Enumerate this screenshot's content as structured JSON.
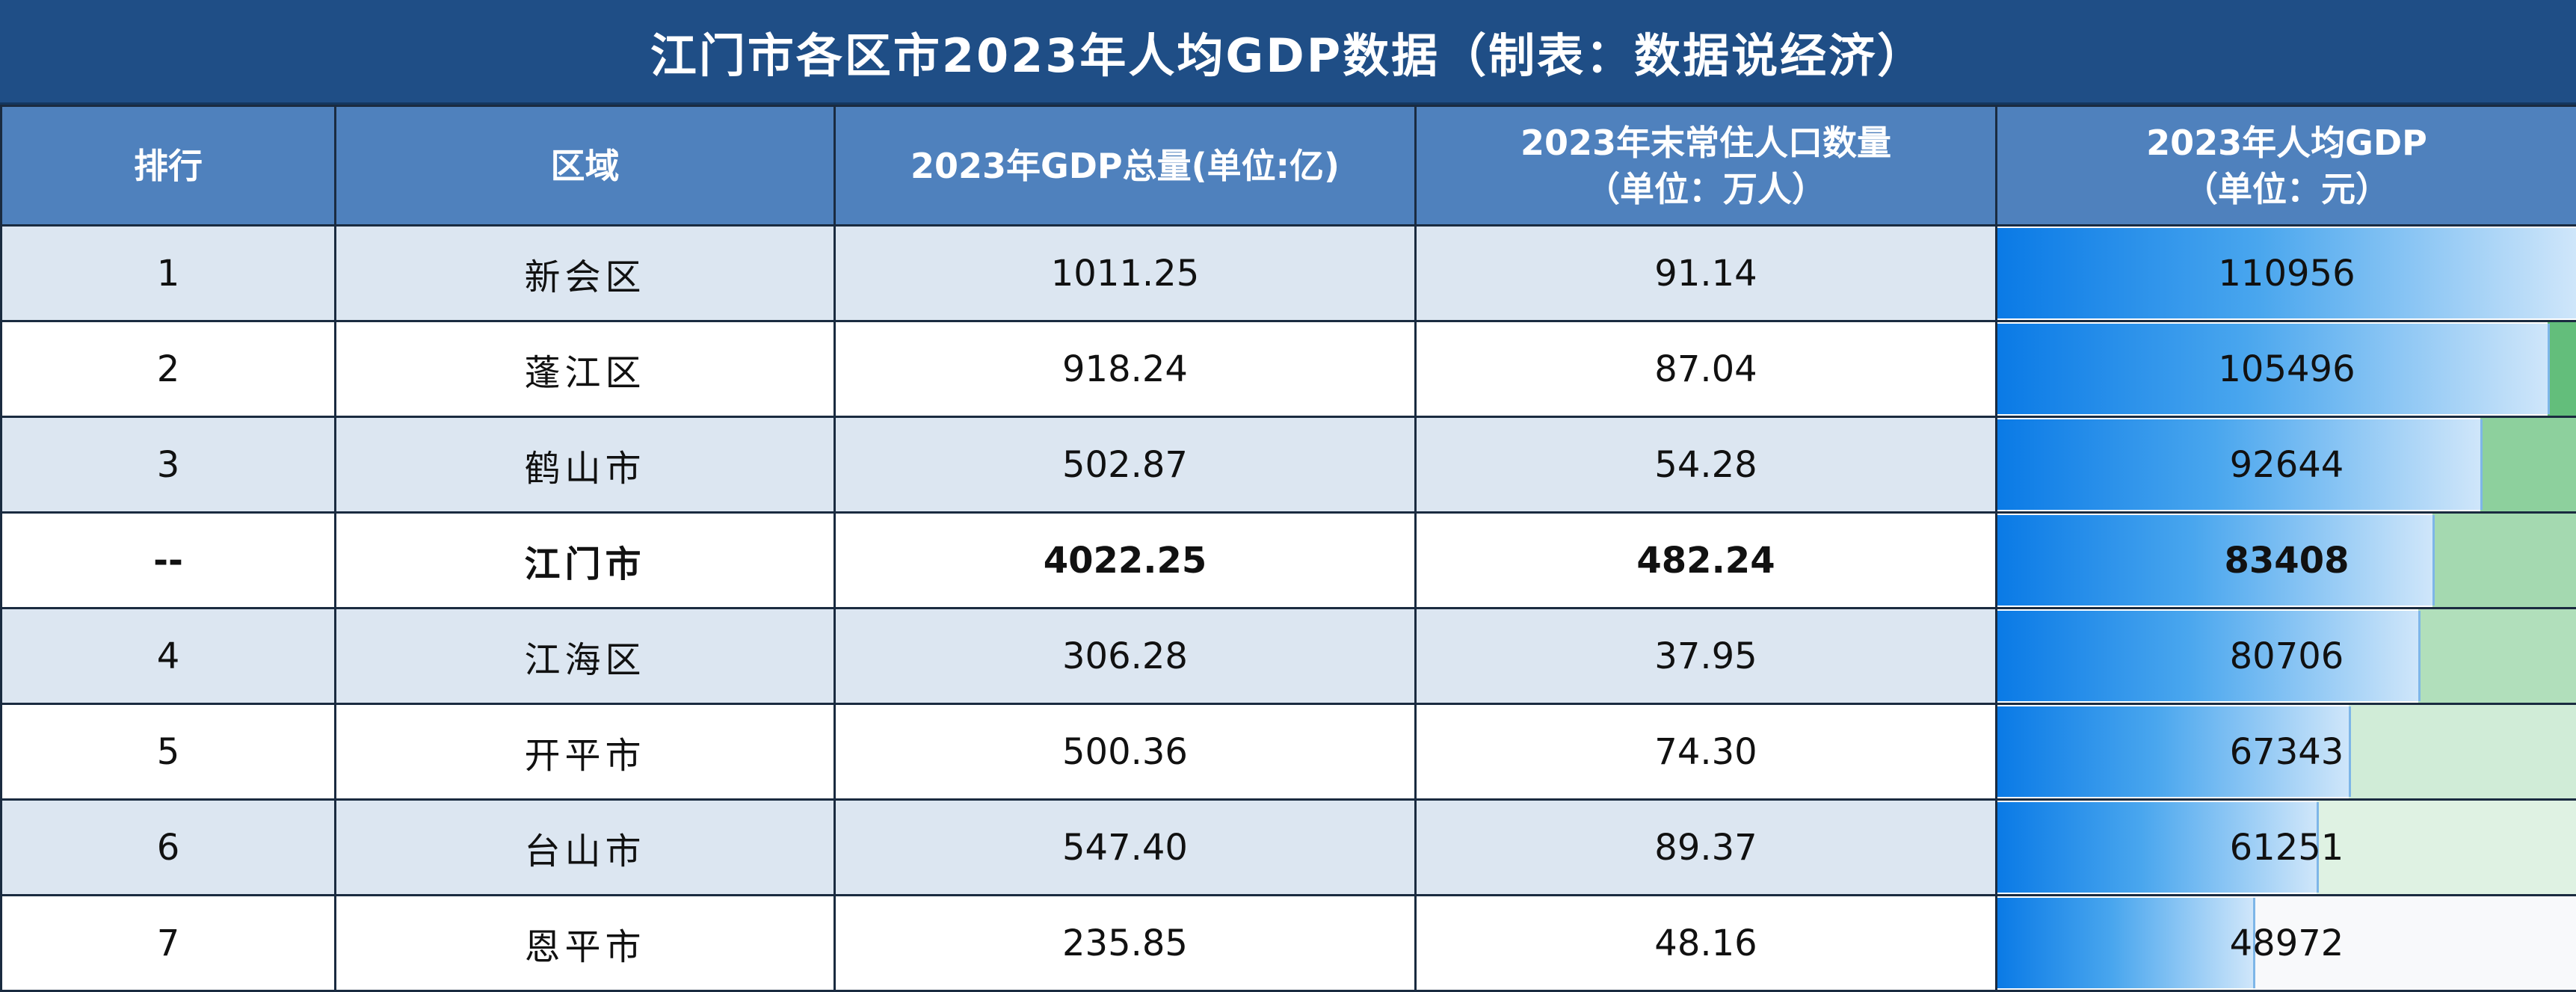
{
  "title": "江门市各区市2023年人均GDP数据（制表：数据说经济）",
  "headers": {
    "rank": "排行",
    "region": "区域",
    "gdp": "2023年GDP总量(单位:亿)",
    "pop_line1": "2023年末常住人口数量",
    "pop_line2": "（单位：万人）",
    "pcgdp_line1": "2023年人均GDP",
    "pcgdp_line2": "（单位：元）"
  },
  "max_per_capita": 110956,
  "rows": [
    {
      "rank": "1",
      "region": "新会区",
      "gdp": "1011.25",
      "population": "91.14",
      "per_capita": "110956",
      "rest_color": "#ffffff"
    },
    {
      "rank": "2",
      "region": "蓬江区",
      "gdp": "918.24",
      "population": "87.04",
      "per_capita": "105496",
      "rest_color": "#63be7b"
    },
    {
      "rank": "3",
      "region": "鹤山市",
      "gdp": "502.87",
      "population": "54.28",
      "per_capita": "92644",
      "rest_color": "#8dd09d"
    },
    {
      "rank": "--",
      "region": "江门市",
      "gdp": "4022.25",
      "population": "482.24",
      "per_capita": "83408",
      "rest_color": "#a4d9b0",
      "total": true
    },
    {
      "rank": "4",
      "region": "江海区",
      "gdp": "306.28",
      "population": "37.95",
      "per_capita": "80706",
      "rest_color": "#b1dfbb"
    },
    {
      "rank": "5",
      "region": "开平市",
      "gdp": "500.36",
      "population": "74.30",
      "per_capita": "67343",
      "rest_color": "#d0ecd7"
    },
    {
      "rank": "6",
      "region": "台山市",
      "gdp": "547.40",
      "population": "89.37",
      "per_capita": "61251",
      "rest_color": "#dff2e3"
    },
    {
      "rank": "7",
      "region": "恩平市",
      "gdp": "235.85",
      "population": "48.16",
      "per_capita": "48972",
      "rest_color": "#f8f9fb"
    }
  ]
}
